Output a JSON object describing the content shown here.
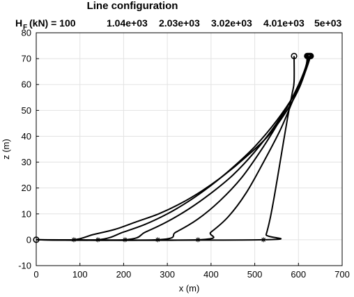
{
  "chart_data": {
    "type": "line",
    "title": "Line configuration",
    "hf_label_main": "H",
    "hf_label_sub": "F",
    "hf_label_rest": "(kN) = 100",
    "hf_values": [
      "1.04e+03",
      "2.03e+03",
      "3.02e+03",
      "4.01e+03",
      "5e+03"
    ],
    "xlabel": "x (m)",
    "ylabel": "z (m)",
    "xlim": [
      0,
      700
    ],
    "ylim": [
      -10,
      80
    ],
    "xticks": [
      0,
      100,
      200,
      300,
      400,
      500,
      600,
      700
    ],
    "yticks": [
      -10,
      0,
      10,
      20,
      30,
      40,
      50,
      60,
      70,
      80
    ],
    "grid": true,
    "anchor": {
      "x": 0,
      "z": 0
    },
    "series": [
      {
        "touchdown_x": 520,
        "points": [
          [
            0,
            0
          ],
          [
            520,
            0
          ],
          [
            526,
            2
          ],
          [
            535,
            8
          ],
          [
            545,
            17
          ],
          [
            555,
            27
          ],
          [
            565,
            37
          ],
          [
            575,
            47
          ],
          [
            585,
            56
          ],
          [
            590,
            61
          ],
          [
            590,
            71
          ]
        ]
      },
      {
        "touchdown_x": 370,
        "points": [
          [
            0,
            0
          ],
          [
            370,
            0
          ],
          [
            400,
            3
          ],
          [
            440,
            9
          ],
          [
            480,
            18
          ],
          [
            520,
            30
          ],
          [
            560,
            43
          ],
          [
            590,
            55
          ],
          [
            610,
            63
          ],
          [
            618,
            67
          ],
          [
            620,
            71
          ]
        ]
      },
      {
        "touchdown_x": 278,
        "points": [
          [
            0,
            0
          ],
          [
            278,
            0
          ],
          [
            320,
            3
          ],
          [
            370,
            8
          ],
          [
            420,
            15
          ],
          [
            470,
            24
          ],
          [
            520,
            36
          ],
          [
            560,
            47
          ],
          [
            595,
            58
          ],
          [
            615,
            66
          ],
          [
            622,
            71
          ]
        ]
      },
      {
        "touchdown_x": 203,
        "points": [
          [
            0,
            0
          ],
          [
            203,
            0
          ],
          [
            250,
            3
          ],
          [
            300,
            7
          ],
          [
            350,
            12
          ],
          [
            400,
            18
          ],
          [
            450,
            25
          ],
          [
            500,
            34
          ],
          [
            550,
            45
          ],
          [
            590,
            56
          ],
          [
            615,
            65
          ],
          [
            624,
            71
          ]
        ]
      },
      {
        "touchdown_x": 141,
        "points": [
          [
            0,
            0
          ],
          [
            141,
            0
          ],
          [
            200,
            3
          ],
          [
            250,
            6
          ],
          [
            300,
            10
          ],
          [
            350,
            15
          ],
          [
            400,
            21
          ],
          [
            450,
            28
          ],
          [
            500,
            36
          ],
          [
            550,
            46
          ],
          [
            590,
            56
          ],
          [
            615,
            65
          ],
          [
            626,
            71
          ]
        ]
      },
      {
        "touchdown_x": 86,
        "points": [
          [
            0,
            0
          ],
          [
            86,
            0
          ],
          [
            130,
            2
          ],
          [
            180,
            4
          ],
          [
            230,
            7
          ],
          [
            280,
            10
          ],
          [
            330,
            14
          ],
          [
            380,
            19
          ],
          [
            430,
            25
          ],
          [
            480,
            32
          ],
          [
            530,
            40
          ],
          [
            570,
            49
          ],
          [
            600,
            58
          ],
          [
            618,
            66
          ],
          [
            628,
            71
          ]
        ]
      }
    ]
  }
}
